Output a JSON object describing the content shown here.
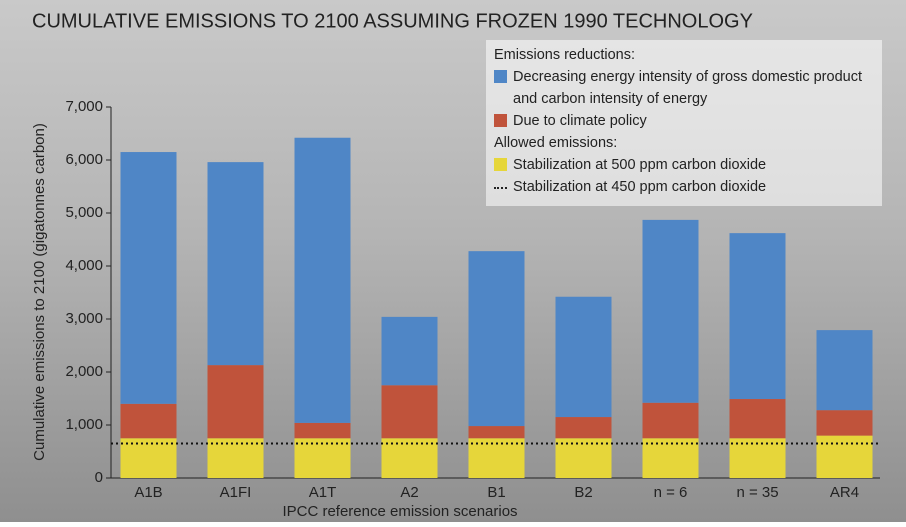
{
  "chart_data": {
    "type": "stacked_bar",
    "title": "CUMULATIVE EMISSIONS TO 2100 ASSUMING FROZEN 1990 TECHNOLOGY",
    "x_label": "IPCC reference emission scenarios",
    "y_label": "Cumulative emissions to 2100 (gigatonnes carbon)",
    "categories": [
      "A1B",
      "A1FI",
      "A1T",
      "A2",
      "B1",
      "B2",
      "n = 6",
      "n = 35",
      "AR4"
    ],
    "legend_groups": [
      "Emissions reductions:",
      "Allowed emissions:"
    ],
    "series": [
      {
        "name": "Stabilization at 500 ppm carbon dioxide",
        "color": "#e6d63a",
        "values": [
          750,
          750,
          750,
          750,
          750,
          750,
          750,
          750,
          800
        ]
      },
      {
        "name": "Due to climate policy",
        "color": "#c0533b",
        "values": [
          650,
          1380,
          290,
          1000,
          230,
          400,
          670,
          740,
          480
        ]
      },
      {
        "name": "Decreasing energy intensity of gross domestic product and carbon intensity of energy",
        "color": "#4f86c6",
        "values": [
          4750,
          3830,
          5380,
          1290,
          3300,
          2270,
          3450,
          3130,
          1510
        ]
      }
    ],
    "reference_line": {
      "name": "Stabilization at 450 ppm carbon dioxide",
      "value": 650
    },
    "ylim": [
      0,
      7000
    ],
    "yticks": [
      {
        "value": 0,
        "label": "0"
      },
      {
        "value": 1000,
        "label": "1,000"
      },
      {
        "value": 2000,
        "label": "2,000"
      },
      {
        "value": 3000,
        "label": "3,000"
      },
      {
        "value": 4000,
        "label": "4,000"
      },
      {
        "value": 5000,
        "label": "5,000"
      },
      {
        "value": 6000,
        "label": "6,000"
      },
      {
        "value": 7000,
        "label": "7,000"
      }
    ]
  }
}
